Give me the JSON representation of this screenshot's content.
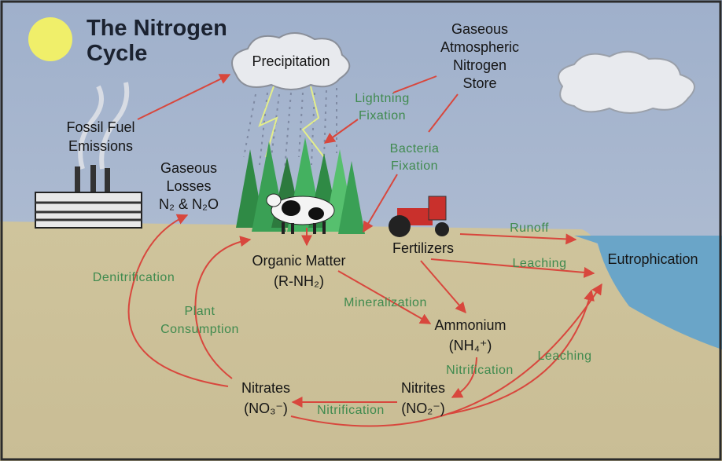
{
  "title": {
    "lines": [
      "The Nitrogen",
      "Cycle"
    ]
  },
  "nodes": [
    {
      "lines": [
        "Precipitation"
      ]
    },
    {
      "lines": [
        "Gaseous",
        "Atmospheric",
        "Nitrogen",
        "Store"
      ]
    },
    {
      "lines": [
        "Fossil Fuel",
        "Emissions"
      ]
    },
    {
      "lines": [
        "Gaseous",
        "Losses",
        "N₂ & N₂O"
      ]
    },
    {
      "lines": [
        "Organic Matter",
        "(R-NH₂)"
      ]
    },
    {
      "lines": [
        "Fertilizers"
      ]
    },
    {
      "lines": [
        "Eutrophication"
      ]
    },
    {
      "lines": [
        "Ammonium",
        "(NH₄⁺)"
      ]
    },
    {
      "lines": [
        "Nitrites",
        "(NO₂⁻)"
      ]
    },
    {
      "lines": [
        "Nitrates",
        "(NO₃⁻)"
      ]
    }
  ],
  "processes": [
    {
      "lines": [
        "Lightning",
        "Fixation"
      ]
    },
    {
      "lines": [
        "Bacteria",
        "Fixation"
      ]
    },
    {
      "lines": [
        "Runoff"
      ]
    },
    {
      "lines": [
        "Leaching"
      ]
    },
    {
      "lines": [
        "Leaching"
      ]
    },
    {
      "lines": [
        "Denitrification"
      ]
    },
    {
      "lines": [
        "Plant",
        "Consumption"
      ]
    },
    {
      "lines": [
        "Mineralization"
      ]
    },
    {
      "lines": [
        "Nitrification"
      ]
    },
    {
      "lines": [
        "Nitrification"
      ]
    }
  ]
}
